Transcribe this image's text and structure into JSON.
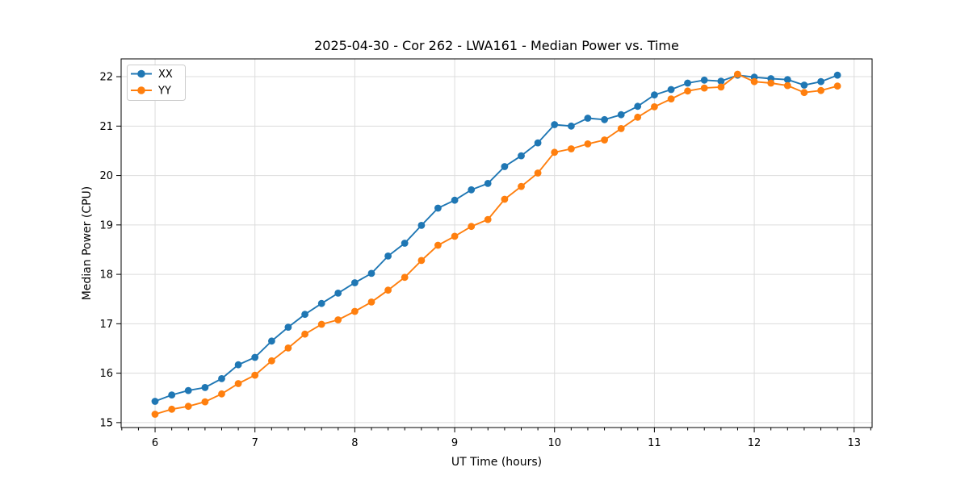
{
  "figure": {
    "background": "#ffffff"
  },
  "chart_data": {
    "type": "line",
    "title": "2025-04-30 - Cor 262 - LWA161 - Median Power vs. Time",
    "xlabel": "UT Time (hours)",
    "ylabel": "Median Power (CPU)",
    "xlim": [
      5.66,
      13.18
    ],
    "ylim": [
      14.9,
      22.36
    ],
    "x_ticks": [
      6,
      7,
      8,
      9,
      10,
      11,
      12,
      13
    ],
    "y_ticks": [
      15,
      16,
      17,
      18,
      19,
      20,
      21,
      22
    ],
    "grid": true,
    "grid_color": "#dcdcdc",
    "legend_position": "upper-left",
    "x": [
      6.0,
      6.167,
      6.333,
      6.5,
      6.667,
      6.833,
      7.0,
      7.167,
      7.333,
      7.5,
      7.667,
      7.833,
      8.0,
      8.167,
      8.333,
      8.5,
      8.667,
      8.833,
      9.0,
      9.167,
      9.333,
      9.5,
      9.667,
      9.833,
      10.0,
      10.167,
      10.333,
      10.5,
      10.667,
      10.833,
      11.0,
      11.167,
      11.333,
      11.5,
      11.667,
      11.833,
      12.0,
      12.167,
      12.333,
      12.5,
      12.667,
      12.833
    ],
    "series": [
      {
        "name": "XX",
        "color": "#1f77b4",
        "values": [
          15.43,
          15.56,
          15.65,
          15.71,
          15.89,
          16.17,
          16.32,
          16.65,
          16.93,
          17.19,
          17.41,
          17.62,
          17.83,
          18.02,
          18.37,
          18.63,
          18.99,
          19.34,
          19.5,
          19.71,
          19.84,
          20.18,
          20.4,
          20.66,
          21.03,
          21.0,
          21.16,
          21.13,
          21.23,
          21.4,
          21.63,
          21.74,
          21.87,
          21.93,
          21.91,
          22.03,
          21.99,
          21.96,
          21.94,
          21.83,
          21.9,
          22.03
        ]
      },
      {
        "name": "YY",
        "color": "#ff7f0e",
        "values": [
          15.17,
          15.27,
          15.33,
          15.42,
          15.58,
          15.79,
          15.96,
          16.25,
          16.51,
          16.79,
          16.99,
          17.08,
          17.25,
          17.44,
          17.68,
          17.94,
          18.28,
          18.59,
          18.77,
          18.97,
          19.11,
          19.52,
          19.78,
          20.05,
          20.47,
          20.54,
          20.64,
          20.72,
          20.95,
          21.18,
          21.39,
          21.55,
          21.71,
          21.77,
          21.79,
          22.05,
          21.9,
          21.87,
          21.82,
          21.68,
          21.72,
          21.81
        ]
      }
    ]
  }
}
